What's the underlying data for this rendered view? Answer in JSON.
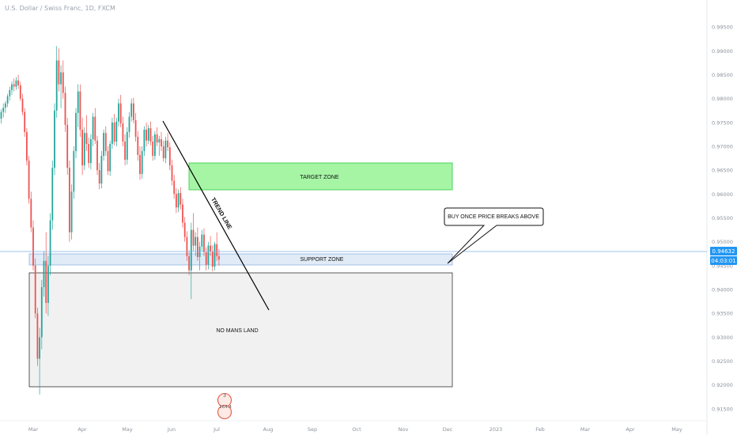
{
  "header": {
    "symbol_title": "U.S. Dollar / Swiss Franc, 1D, FXCM"
  },
  "colors": {
    "up": "#26a69a",
    "down": "#ef5350",
    "target_fill": "#a5f5a5",
    "target_stroke": "#2ecc40",
    "support_fill": "#dbe8f6",
    "support_stroke": "#8fb4de",
    "price_line": "#7fb2ea",
    "price_tag": "#2196f3"
  },
  "chart_data": {
    "type": "candlestick",
    "title": "U.S. Dollar / Swiss Franc, 1D, FXCM",
    "ylim": [
      0.9125,
      0.9995
    ],
    "y_ticks": [
      "0.99500",
      "0.99000",
      "0.98500",
      "0.98000",
      "0.97500",
      "0.97000",
      "0.96500",
      "0.96000",
      "0.95500",
      "0.95000",
      "0.94500",
      "0.94000",
      "0.93500",
      "0.93000",
      "0.92500",
      "0.92000",
      "0.91500"
    ],
    "x_ticks": [
      "Mar",
      "Apr",
      "May",
      "Jun",
      "Jul",
      "Aug",
      "Sep",
      "Oct",
      "Nov",
      "Dec",
      "2023",
      "Feb",
      "Mar",
      "Apr",
      "May"
    ],
    "current_price": "0.94632",
    "countdown": "04:03:01",
    "grid": false,
    "annotations": {
      "target_zone": "TARGET ZONE",
      "support_zone": "SUPPORT ZONE",
      "no_mans_land": "NO MANS LAND",
      "trend_line": "TREND LINE",
      "callout": "BUY ONCE PRICE BREAKS ABOVE"
    },
    "target_zone_range": [
      0.9595,
      0.965
    ],
    "support_zone_range": [
      0.9435,
      0.9465
    ],
    "no_mans_land_range": [
      0.918,
      0.943
    ],
    "trend_line_points": [
      [
        0.9738,
        "May 28"
      ],
      [
        0.9365,
        "Jul 29"
      ]
    ],
    "event_badges": [
      "3",
      "164.4"
    ],
    "ohlc": [
      [
        0.9758,
        0.9778,
        0.9748,
        0.9772
      ],
      [
        0.9772,
        0.979,
        0.976,
        0.9781
      ],
      [
        0.9781,
        0.9795,
        0.977,
        0.979
      ],
      [
        0.979,
        0.981,
        0.9782,
        0.9805
      ],
      [
        0.9805,
        0.9825,
        0.9796,
        0.9818
      ],
      [
        0.9818,
        0.9836,
        0.9808,
        0.983
      ],
      [
        0.983,
        0.9842,
        0.9815,
        0.9825
      ],
      [
        0.9825,
        0.9845,
        0.9818,
        0.9838
      ],
      [
        0.9838,
        0.985,
        0.982,
        0.9828
      ],
      [
        0.9828,
        0.9835,
        0.9795,
        0.98
      ],
      [
        0.98,
        0.981,
        0.9765,
        0.9772
      ],
      [
        0.9772,
        0.978,
        0.972,
        0.973
      ],
      [
        0.973,
        0.9738,
        0.966,
        0.967
      ],
      [
        0.967,
        0.968,
        0.958,
        0.959
      ],
      [
        0.959,
        0.9605,
        0.952,
        0.953
      ],
      [
        0.953,
        0.9545,
        0.944,
        0.945
      ],
      [
        0.945,
        0.9465,
        0.934,
        0.935
      ],
      [
        0.935,
        0.9362,
        0.924,
        0.9255
      ],
      [
        0.9255,
        0.932,
        0.918,
        0.93
      ],
      [
        0.93,
        0.942,
        0.9275,
        0.9405
      ],
      [
        0.9405,
        0.948,
        0.9385,
        0.946
      ],
      [
        0.946,
        0.952,
        0.935,
        0.9372
      ],
      [
        0.9372,
        0.947,
        0.9345,
        0.945
      ],
      [
        0.945,
        0.956,
        0.943,
        0.9545
      ],
      [
        0.9545,
        0.967,
        0.9525,
        0.9655
      ],
      [
        0.9655,
        0.979,
        0.964,
        0.9775
      ],
      [
        0.9775,
        0.991,
        0.976,
        0.988
      ],
      [
        0.988,
        0.9905,
        0.9815,
        0.983
      ],
      [
        0.983,
        0.987,
        0.978,
        0.9855
      ],
      [
        0.9855,
        0.988,
        0.98,
        0.9812
      ],
      [
        0.9812,
        0.9825,
        0.973,
        0.9745
      ],
      [
        0.9745,
        0.976,
        0.964,
        0.9655
      ],
      [
        0.9655,
        0.967,
        0.95,
        0.952
      ],
      [
        0.952,
        0.962,
        0.9505,
        0.9605
      ],
      [
        0.9605,
        0.97,
        0.959,
        0.969
      ],
      [
        0.969,
        0.978,
        0.9675,
        0.977
      ],
      [
        0.977,
        0.983,
        0.974,
        0.9815
      ],
      [
        0.9815,
        0.983,
        0.972,
        0.9735
      ],
      [
        0.9735,
        0.976,
        0.964,
        0.966
      ],
      [
        0.966,
        0.974,
        0.965,
        0.9728
      ],
      [
        0.9728,
        0.9765,
        0.969,
        0.9705
      ],
      [
        0.9705,
        0.9718,
        0.9655,
        0.9665
      ],
      [
        0.9665,
        0.9725,
        0.9652,
        0.9715
      ],
      [
        0.9715,
        0.977,
        0.97,
        0.9762
      ],
      [
        0.9762,
        0.978,
        0.9705,
        0.9712
      ],
      [
        0.9712,
        0.9722,
        0.964,
        0.965
      ],
      [
        0.965,
        0.9665,
        0.961,
        0.9622
      ],
      [
        0.9622,
        0.969,
        0.9612,
        0.968
      ],
      [
        0.968,
        0.9735,
        0.967,
        0.9728
      ],
      [
        0.9728,
        0.9742,
        0.968,
        0.969
      ],
      [
        0.969,
        0.97,
        0.964,
        0.9648
      ],
      [
        0.9648,
        0.9712,
        0.9638,
        0.9705
      ],
      [
        0.9705,
        0.976,
        0.9695,
        0.975
      ],
      [
        0.975,
        0.9768,
        0.9702,
        0.971
      ],
      [
        0.971,
        0.976,
        0.97,
        0.9752
      ],
      [
        0.9752,
        0.98,
        0.9742,
        0.979
      ],
      [
        0.979,
        0.9808,
        0.974,
        0.9748
      ],
      [
        0.9748,
        0.9762,
        0.97,
        0.971
      ],
      [
        0.971,
        0.9725,
        0.966,
        0.9672
      ],
      [
        0.9672,
        0.974,
        0.9662,
        0.973
      ],
      [
        0.973,
        0.9772,
        0.9718,
        0.9762
      ],
      [
        0.9762,
        0.98,
        0.9752,
        0.979
      ],
      [
        0.979,
        0.9802,
        0.9748,
        0.9755
      ],
      [
        0.9755,
        0.977,
        0.971,
        0.972
      ],
      [
        0.972,
        0.9732,
        0.967,
        0.9682
      ],
      [
        0.9682,
        0.97,
        0.963,
        0.9642
      ],
      [
        0.9642,
        0.97,
        0.9632,
        0.969
      ],
      [
        0.969,
        0.9742,
        0.968,
        0.9735
      ],
      [
        0.9735,
        0.975,
        0.97,
        0.9712
      ],
      [
        0.9712,
        0.9745,
        0.9705,
        0.9738
      ],
      [
        0.9738,
        0.9752,
        0.9702,
        0.971
      ],
      [
        0.971,
        0.9722,
        0.967,
        0.968
      ],
      [
        0.968,
        0.9732,
        0.9672,
        0.9725
      ],
      [
        0.9725,
        0.974,
        0.97,
        0.9708
      ],
      [
        0.9708,
        0.9722,
        0.968,
        0.9715
      ],
      [
        0.9715,
        0.973,
        0.969,
        0.97
      ],
      [
        0.97,
        0.9712,
        0.9668,
        0.9675
      ],
      [
        0.9675,
        0.972,
        0.9665,
        0.9712
      ],
      [
        0.9712,
        0.9728,
        0.969,
        0.9698
      ],
      [
        0.9698,
        0.9708,
        0.965,
        0.966
      ],
      [
        0.966,
        0.9672,
        0.9618,
        0.9628
      ],
      [
        0.9628,
        0.964,
        0.959,
        0.96
      ],
      [
        0.96,
        0.9612,
        0.956,
        0.9572
      ],
      [
        0.9572,
        0.961,
        0.9562,
        0.9602
      ],
      [
        0.9602,
        0.9614,
        0.9568,
        0.9578
      ],
      [
        0.9578,
        0.959,
        0.953,
        0.954
      ],
      [
        0.954,
        0.9552,
        0.95,
        0.951
      ],
      [
        0.951,
        0.9522,
        0.946,
        0.947
      ],
      [
        0.947,
        0.9482,
        0.943,
        0.944
      ],
      [
        0.944,
        0.954,
        0.938,
        0.9525
      ],
      [
        0.9525,
        0.956,
        0.948,
        0.9492
      ],
      [
        0.9492,
        0.952,
        0.947,
        0.951
      ],
      [
        0.951,
        0.953,
        0.946,
        0.9468
      ],
      [
        0.9468,
        0.95,
        0.944,
        0.949
      ],
      [
        0.949,
        0.9525,
        0.948,
        0.9515
      ],
      [
        0.9515,
        0.9528,
        0.947,
        0.9478
      ],
      [
        0.9478,
        0.9488,
        0.944,
        0.9452
      ],
      [
        0.9452,
        0.95,
        0.9442,
        0.9492
      ],
      [
        0.9492,
        0.9512,
        0.947,
        0.948
      ],
      [
        0.948,
        0.9492,
        0.9438,
        0.9448
      ],
      [
        0.9448,
        0.95,
        0.944,
        0.9495
      ],
      [
        0.9495,
        0.952,
        0.946,
        0.947
      ],
      [
        0.947,
        0.9485,
        0.945,
        0.9463
      ]
    ]
  }
}
